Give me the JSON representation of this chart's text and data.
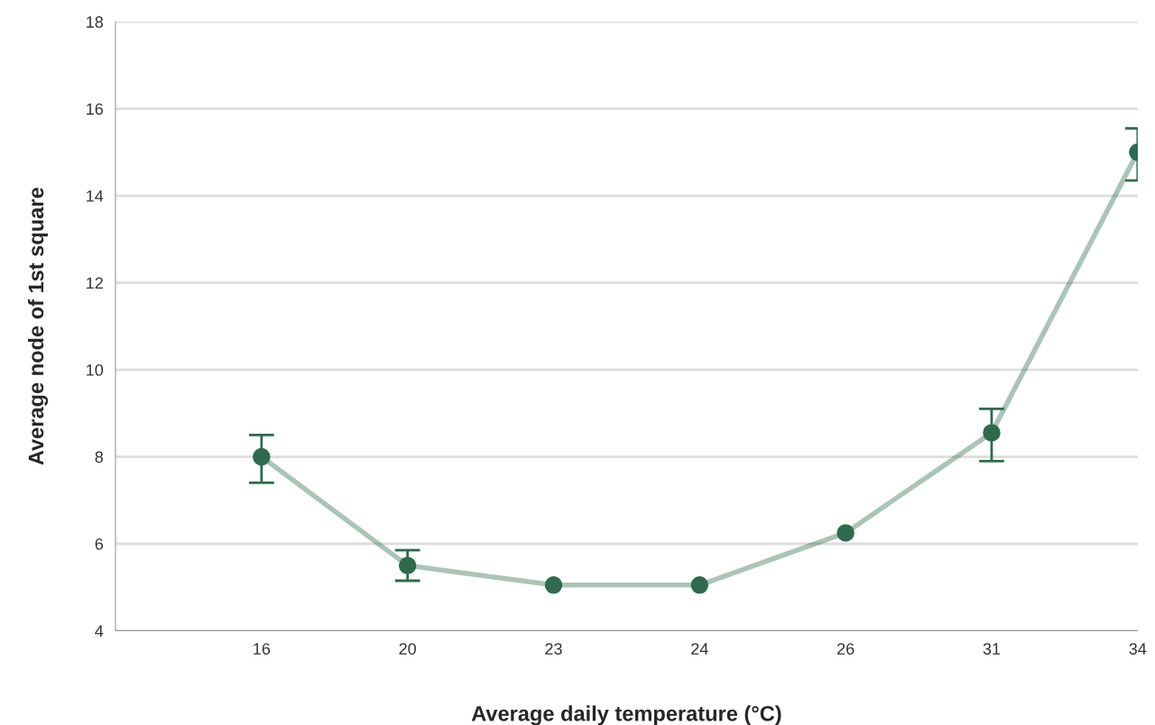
{
  "chart_data": {
    "type": "line",
    "xlabel": "Average daily temperature (°C)",
    "ylabel": "Average node of 1st square",
    "categories": [
      "16",
      "20",
      "23",
      "24",
      "26",
      "31",
      "34"
    ],
    "series": [
      {
        "color": "#2e6b4e",
        "values": [
          8.0,
          5.5,
          5.05,
          5.05,
          6.25,
          8.55,
          15.0
        ],
        "errors": [
          [
            7.4,
            8.5
          ],
          [
            5.15,
            5.85
          ],
          null,
          null,
          null,
          [
            7.9,
            9.1
          ],
          [
            14.35,
            15.55
          ]
        ]
      }
    ],
    "ylim": [
      4,
      18
    ],
    "yticks": [
      4,
      6,
      8,
      10,
      12,
      14,
      16,
      18
    ],
    "grid": "y",
    "marker": "circle",
    "line_style": "solid"
  }
}
